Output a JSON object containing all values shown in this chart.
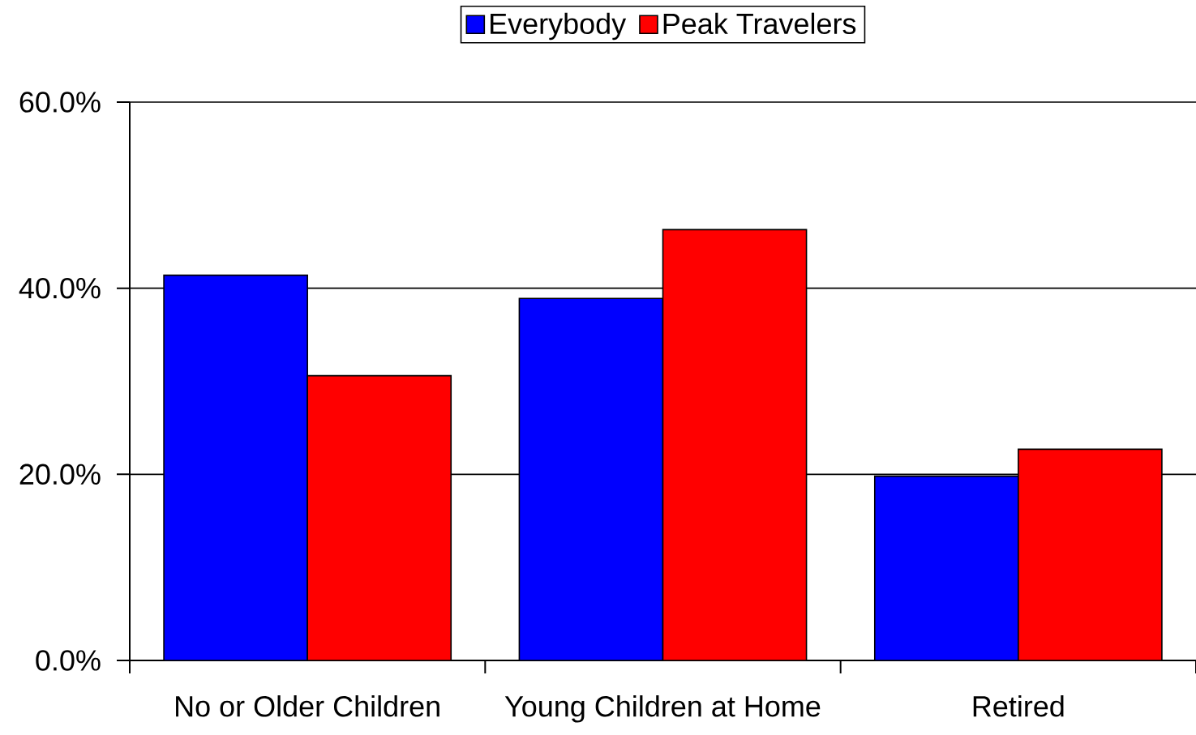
{
  "chart_data": {
    "type": "bar",
    "categories": [
      "No or Older Children",
      "Young Children at Home",
      "Retired"
    ],
    "series": [
      {
        "name": "Everybody",
        "color": "#0000ff",
        "values": [
          41.4,
          38.9,
          19.8
        ]
      },
      {
        "name": "Peak Travelers",
        "color": "#ff0000",
        "values": [
          30.6,
          46.3,
          22.7
        ]
      }
    ],
    "ylim": [
      0,
      60
    ],
    "yticks": [
      {
        "value": 0,
        "label": "0.0%"
      },
      {
        "value": 20,
        "label": "20.0%"
      },
      {
        "value": 40,
        "label": "40.0%"
      },
      {
        "value": 60,
        "label": "60.0%"
      }
    ],
    "grid": "y",
    "legend": "top"
  }
}
